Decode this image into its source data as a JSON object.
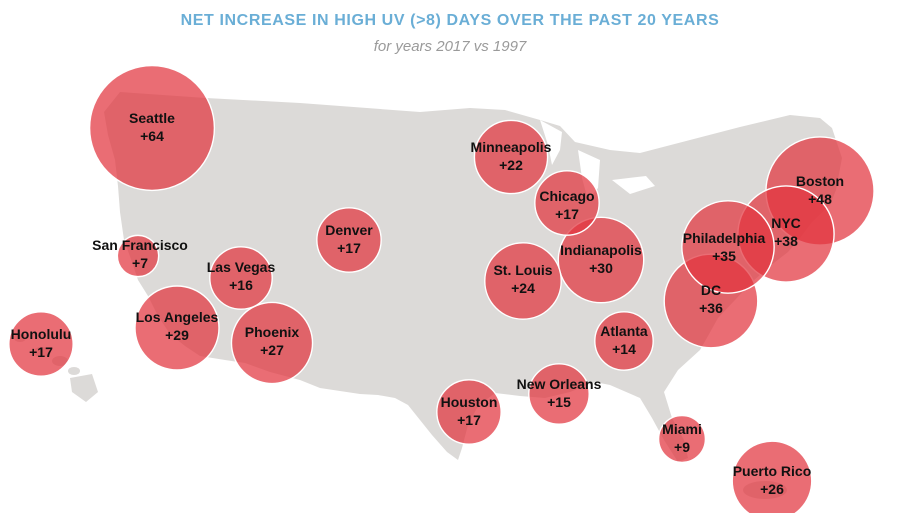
{
  "header": {
    "title": "NET INCREASE IN HIGH UV (>8) DAYS OVER THE PAST 20 YEARS",
    "subtitle": "for years 2017 vs 1997"
  },
  "colors": {
    "title": "#6aaed6",
    "subtitle": "#9a9a9a",
    "land": "#dcdad8",
    "bubble": "#e2353f"
  },
  "cities": [
    {
      "id": "seattle",
      "name": "Seattle",
      "value": "+64",
      "increase": 64
    },
    {
      "id": "minneapolis",
      "name": "Minneapolis",
      "value": "+22",
      "increase": 22
    },
    {
      "id": "chicago",
      "name": "Chicago",
      "value": "+17",
      "increase": 17
    },
    {
      "id": "boston",
      "name": "Boston",
      "value": "+48",
      "increase": 48
    },
    {
      "id": "nyc",
      "name": "NYC",
      "value": "+38",
      "increase": 38
    },
    {
      "id": "philadelphia",
      "name": "Philadelphia",
      "value": "+35",
      "increase": 35
    },
    {
      "id": "dc",
      "name": "DC",
      "value": "+36",
      "increase": 36
    },
    {
      "id": "indianapolis",
      "name": "Indianapolis",
      "value": "+30",
      "increase": 30
    },
    {
      "id": "st-louis",
      "name": "St. Louis",
      "value": "+24",
      "increase": 24
    },
    {
      "id": "denver",
      "name": "Denver",
      "value": "+17",
      "increase": 17
    },
    {
      "id": "san-francisco",
      "name": "San Francisco",
      "value": "+7",
      "increase": 7
    },
    {
      "id": "las-vegas",
      "name": "Las Vegas",
      "value": "+16",
      "increase": 16
    },
    {
      "id": "los-angeles",
      "name": "Los Angeles",
      "value": "+29",
      "increase": 29
    },
    {
      "id": "phoenix",
      "name": "Phoenix",
      "value": "+27",
      "increase": 27
    },
    {
      "id": "honolulu",
      "name": "Honolulu",
      "value": "+17",
      "increase": 17
    },
    {
      "id": "atlanta",
      "name": "Atlanta",
      "value": "+14",
      "increase": 14
    },
    {
      "id": "new-orleans",
      "name": "New Orleans",
      "value": "+15",
      "increase": 15
    },
    {
      "id": "houston",
      "name": "Houston",
      "value": "+17",
      "increase": 17
    },
    {
      "id": "miami",
      "name": "Miami",
      "value": "+9",
      "increase": 9
    },
    {
      "id": "puerto-rico",
      "name": "Puerto Rico",
      "value": "+26",
      "increase": 26
    }
  ]
}
